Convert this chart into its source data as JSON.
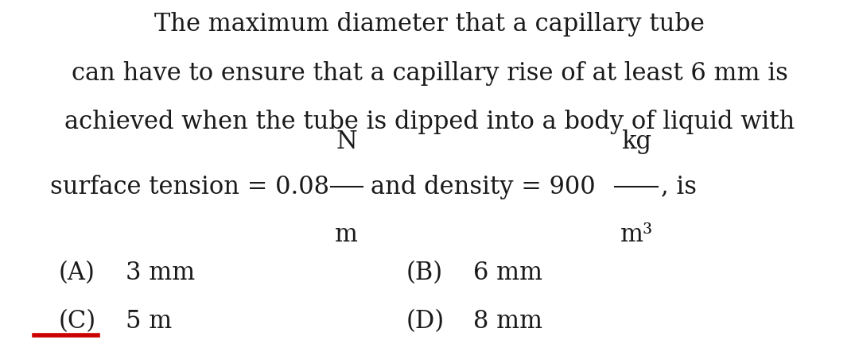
{
  "bg_color": "#ffffff",
  "text_color": "#1a1a1a",
  "accent_color": "#cc0000",
  "line1": "The maximum diameter that a capillary tube",
  "line2": "can have to ensure that a capillary rise of at least 6 mm is",
  "line3": "achieved when the tube is dipped into a body of liquid with",
  "surface_tension_prefix": "surface tension = 0.08",
  "N_numerator": "N",
  "N_denominator": "m",
  "middle_text": "and density = 900",
  "kg_numerator": "kg",
  "kg_denominator": "m³",
  "suffix": ", is",
  "optA_label": "(A)",
  "optA_value": "3 mm",
  "optB_label": "(B)",
  "optB_value": "6 mm",
  "optC_label": "(C)",
  "optC_value": "5 m",
  "optD_label": "(D)",
  "optD_value": "8 mm",
  "font_size_main": 22,
  "font_size_options": 22,
  "figwidth": 10.8,
  "figheight": 4.28,
  "dpi": 100
}
